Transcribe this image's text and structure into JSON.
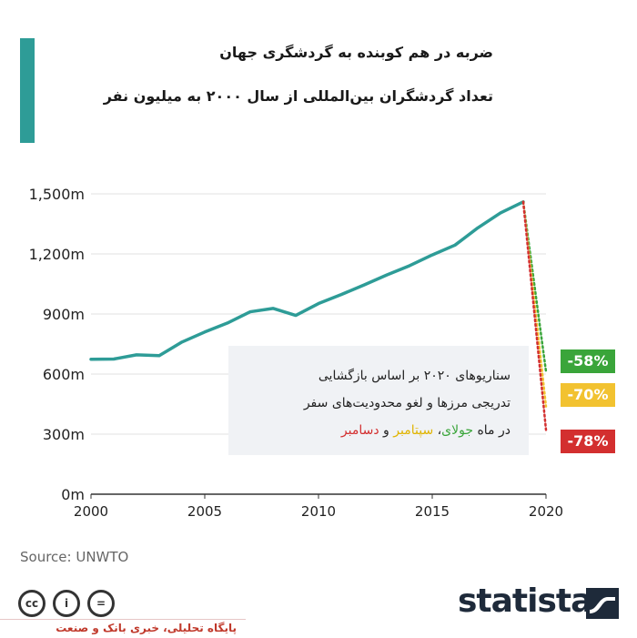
{
  "header": {
    "title": "ضربه در هم کوبنده به گردشگری جهان",
    "subtitle": "تعداد گردشگران بین‌المللی از سال ۲۰۰۰ به میلیون نفر"
  },
  "colors": {
    "accent": "#2e9c97",
    "line": "#2e9c97",
    "july": "#3aa53a",
    "september": "#f2c230",
    "december": "#d32f2f"
  },
  "chart_data": {
    "type": "line",
    "title": "",
    "xlabel": "",
    "ylabel": "",
    "xlim": [
      2000,
      2020
    ],
    "ylim": [
      0,
      1500
    ],
    "x_ticks": [
      "2000",
      "2005",
      "2010",
      "2015",
      "2020"
    ],
    "y_ticks": [
      "0m",
      "300m",
      "600m",
      "900m",
      "1,200m",
      "1,500m"
    ],
    "grid": "horizontal",
    "series": [
      {
        "x": [
          2000,
          2001,
          2002,
          2003,
          2004,
          2005,
          2006,
          2007,
          2008,
          2009,
          2010,
          2011,
          2012,
          2013,
          2014,
          2015,
          2016,
          2017,
          2018,
          2019
        ],
        "values": [
          674,
          675,
          696,
          692,
          760,
          810,
          855,
          911,
          928,
          893,
          952,
          997,
          1045,
          1095,
          1141,
          1195,
          1244,
          1330,
          1405,
          1460
        ]
      }
    ],
    "scenarios": [
      {
        "x": [
          2019,
          2020
        ],
        "values": [
          1460,
          613
        ],
        "label": "-58%",
        "color": "#3aa53a"
      },
      {
        "x": [
          2019,
          2020
        ],
        "values": [
          1460,
          438
        ],
        "label": "-70%",
        "color": "#f2c230"
      },
      {
        "x": [
          2019,
          2020
        ],
        "values": [
          1460,
          321
        ],
        "label": "-78%",
        "color": "#d32f2f"
      }
    ]
  },
  "callout": {
    "line1": "سناریوهای ۲۰۲۰ بر اساس بازگشایی",
    "line2": "تدریجی مرزها و لغو محدودیت‌های سفر",
    "line3_prefix": "در ماه ",
    "july": "جولای",
    "sep_comma": "، ",
    "september": "سپتامبر",
    "and": " و ",
    "december": "دسامبر"
  },
  "source": "Source: UNWTO",
  "license_icons": [
    "cc-icon",
    "by-icon",
    "nd-icon"
  ],
  "license_labels": [
    "cc",
    "i",
    "="
  ],
  "brand": "statista",
  "footer": "پایگاه تحلیلی، خبری بانک و صنعت"
}
